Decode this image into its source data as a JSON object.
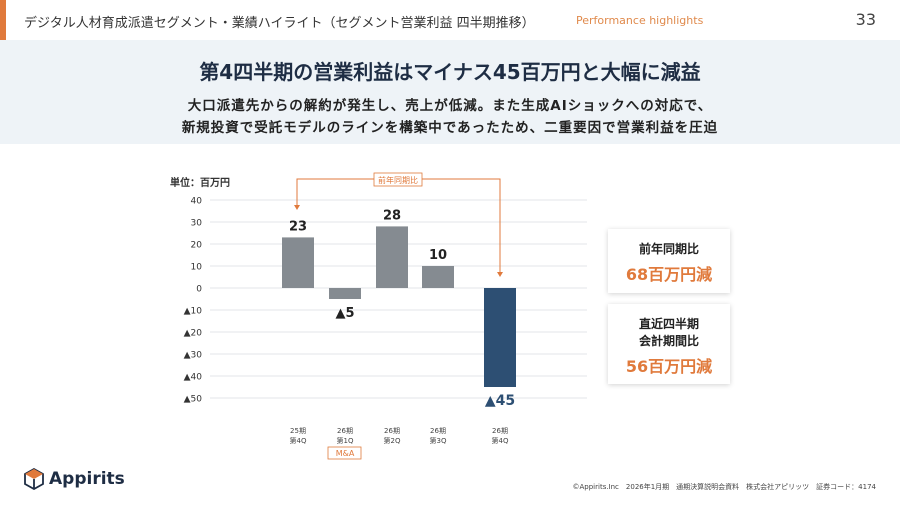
{
  "header": {
    "title": "デジタル人材育成派遣セグメント・業績ハイライト（セグメント営業利益 四半期推移）",
    "subtitle_en": "Performance highlights",
    "page": "33"
  },
  "headline": "第4四半期の営業利益はマイナス45百万円と大幅に減益",
  "description": [
    "大口派遣先からの解約が発生し、売上が低減。また生成AIショックへの対応で、",
    "新規投資で受託モデルのラインを構築中であったため、二重要因で営業利益を圧迫"
  ],
  "chart_data": {
    "type": "bar",
    "unit_label": "単位：百万円",
    "categories": [
      [
        "25期",
        "第4Q"
      ],
      [
        "26期",
        "第1Q"
      ],
      [
        "26期",
        "第2Q"
      ],
      [
        "26期",
        "第3Q"
      ],
      [
        "26期",
        "第4Q"
      ]
    ],
    "values": [
      23,
      -5,
      28,
      10,
      -45
    ],
    "data_labels": [
      "23",
      "▲5",
      "28",
      "10",
      "▲45"
    ],
    "yticks": [
      40,
      30,
      20,
      10,
      0,
      -10,
      -20,
      -30,
      -40,
      -50
    ],
    "ytick_labels": [
      "40",
      "30",
      "20",
      "10",
      "0",
      "▲10",
      "▲20",
      "▲30",
      "▲40",
      "▲50"
    ],
    "ylim": [
      -50,
      40
    ],
    "colors": {
      "normal": "#858b91",
      "highlight": "#2d4f73"
    },
    "annotation_yoy": "前年同期比",
    "annotation_ma": "M&A"
  },
  "callouts": [
    {
      "label": [
        "前年同期比"
      ],
      "value": "68百万円減"
    },
    {
      "label": [
        "直近四半期",
        "会計期間比"
      ],
      "value": "56百万円減"
    }
  ],
  "footer": {
    "brand": "Appirits",
    "text": "©Appirits.Inc　2026年1月期　通期決算説明会資料　株式会社アピリッツ　証券コード：4174"
  }
}
